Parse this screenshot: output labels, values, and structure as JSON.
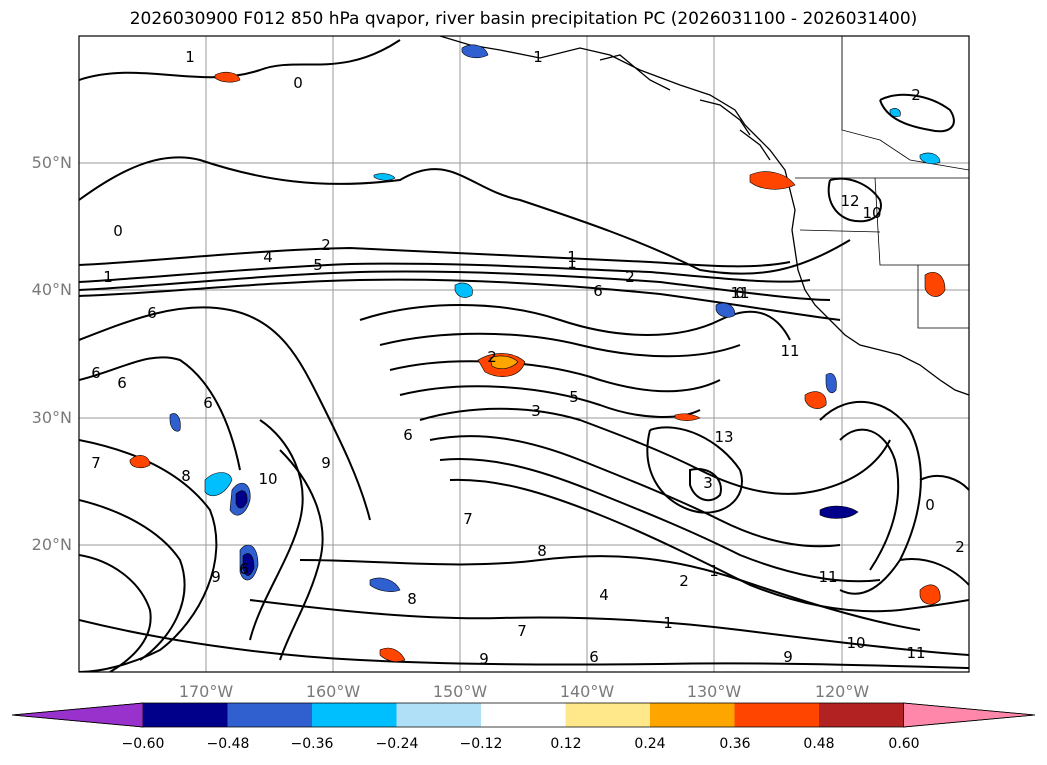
{
  "title": "2026030900 F012 850 hPa qvapor, river basin precipitation PC (2026031100 - 2026031400)",
  "lat_labels": [
    "50°N",
    "40°N",
    "30°N",
    "20°N"
  ],
  "lon_labels": [
    "170°W",
    "160°W",
    "150°W",
    "140°W",
    "130°W",
    "120°W"
  ],
  "colorbar": {
    "ticks": [
      "−0.60",
      "−0.48",
      "−0.36",
      "−0.24",
      "−0.12",
      "0.12",
      "0.24",
      "0.36",
      "0.48",
      "0.60"
    ],
    "colors": [
      "#9932cc",
      "#00008b",
      "#3060d0",
      "#00bfff",
      "#b0e0f8",
      "#ffffff",
      "#ffe88a",
      "#ffa500",
      "#ff4500",
      "#b22222",
      "#ff88aa"
    ]
  },
  "contour_labels": [
    "1",
    "0",
    "1",
    "2",
    "0",
    "2",
    "4",
    "5",
    "1",
    "1",
    "6",
    "2",
    "0",
    "6",
    "1",
    "6",
    "6",
    "6",
    "2",
    "5",
    "3",
    "6",
    "9",
    "10",
    "8",
    "7",
    "7",
    "8",
    "9",
    "6",
    "8",
    "7",
    "1",
    "1",
    "9",
    "6",
    "9",
    "11",
    "10",
    "10",
    "12",
    "11",
    "11",
    "11",
    "13",
    "3",
    "2",
    "4",
    "0",
    "2"
  ],
  "map_features": {
    "projection": "equirectangular",
    "lon_range": [
      -180,
      -110
    ],
    "lat_range": [
      10,
      60
    ],
    "gridlines": true,
    "coastlines": true,
    "state_borders": true
  }
}
